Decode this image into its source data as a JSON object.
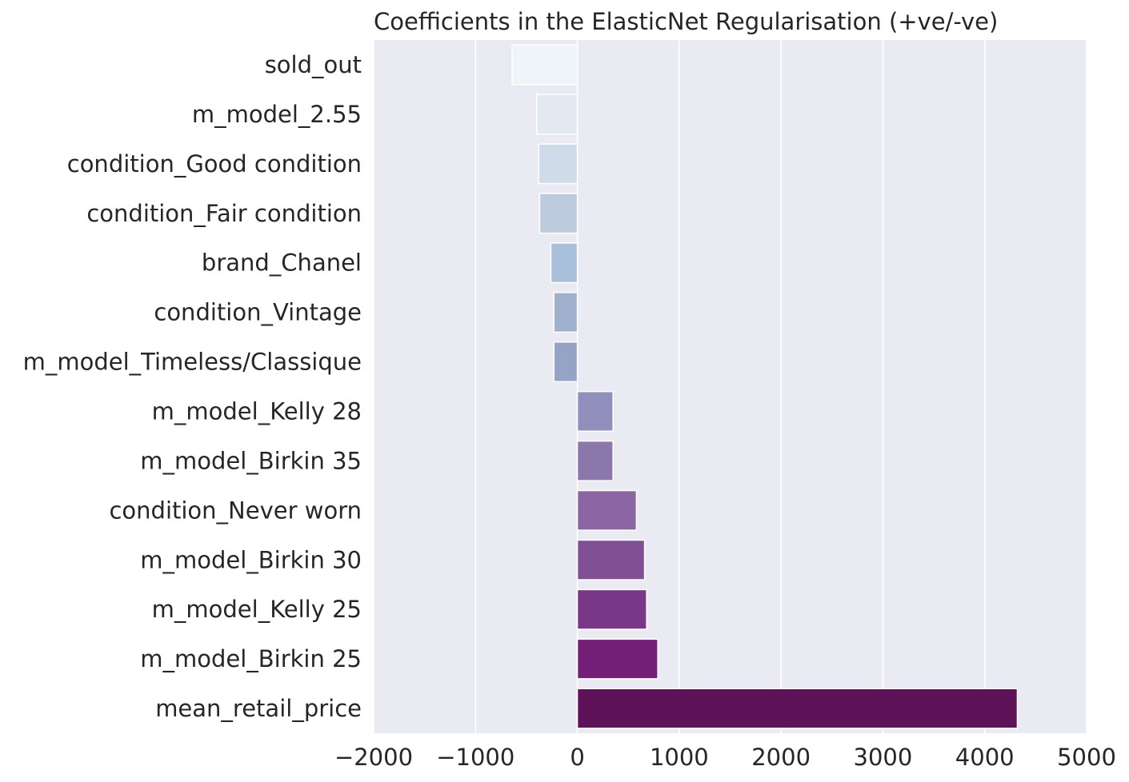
{
  "chart_data": {
    "type": "bar",
    "orientation": "horizontal",
    "title": "Coefficients in the ElasticNet Regularisation (+ve/-ve)",
    "xlabel": "",
    "ylabel": "",
    "xlim": [
      -2000,
      5000
    ],
    "xticks": [
      -2000,
      -1000,
      0,
      1000,
      2000,
      3000,
      4000,
      5000
    ],
    "xtick_labels": [
      "−2000",
      "−1000",
      "0",
      "1000",
      "2000",
      "3000",
      "4000",
      "5000"
    ],
    "grid": true,
    "categories": [
      "sold_out",
      "m_model_2.55",
      "condition_Good condition",
      "condition_Fair condition",
      "brand_Chanel",
      "condition_Vintage",
      "m_model_Timeless/Classique",
      "m_model_Kelly 28",
      "m_model_Birkin 35",
      "condition_Never worn",
      "m_model_Birkin 30",
      "m_model_Kelly 25",
      "m_model_Birkin 25",
      "mean_retail_price"
    ],
    "values": [
      -640,
      -400,
      -380,
      -370,
      -260,
      -230,
      -230,
      350,
      350,
      580,
      660,
      680,
      790,
      4320
    ],
    "colors": [
      "#eef4f7",
      "#e2e9f1",
      "#cfdbe8",
      "#bccbdd",
      "#a9c0db",
      "#a0b1cd",
      "#95a4c6",
      "#9190bd",
      "#8c77ab",
      "#8c66a2",
      "#814f95",
      "#7b3787",
      "#731f77",
      "#5e1257"
    ],
    "background_color": "#eaeaf2",
    "grid_color": "#ffffff"
  }
}
